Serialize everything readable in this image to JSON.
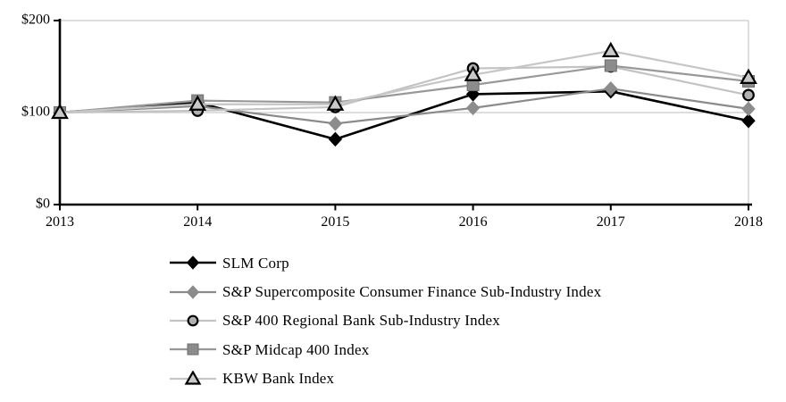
{
  "chart_data": {
    "type": "line",
    "title": "",
    "xlabel": "",
    "ylabel": "",
    "ylim": [
      0,
      200
    ],
    "grid": "horizontal",
    "legend_position": "bottom-left",
    "x_labels": [
      "2013",
      "2014",
      "2015",
      "2016",
      "2017",
      "2018"
    ],
    "y_ticks": [
      {
        "label": "$0",
        "value": 0
      },
      {
        "label": "$100",
        "value": 100
      },
      {
        "label": "$200",
        "value": 200
      }
    ],
    "series": [
      {
        "name": "SLM Corp",
        "marker": "diamond",
        "line_color": "#000000",
        "marker_fill": "#000000",
        "marker_stroke": "#000000",
        "values": [
          100,
          111,
          71,
          120,
          123,
          91
        ]
      },
      {
        "name": "S&P Supercomposite Consumer Finance Sub-Industry Index",
        "marker": "diamond",
        "line_color": "#8a8a8a",
        "marker_fill": "#8c8c8c",
        "marker_stroke": "#8c8c8c",
        "values": [
          100,
          107,
          88,
          105,
          126,
          104
        ]
      },
      {
        "name": "S&P 400 Regional Bank Sub-Industry Index",
        "marker": "circle",
        "line_color": "#c3c3c3",
        "marker_fill": "#b0b0b0",
        "marker_stroke": "#000000",
        "values": [
          100,
          102,
          106,
          148,
          150,
          119
        ]
      },
      {
        "name": "S&P Midcap 400 Index",
        "marker": "square",
        "line_color": "#989898",
        "marker_fill": "#8c8c8c",
        "marker_stroke": "#6e6e6e",
        "values": [
          100,
          113,
          111,
          130,
          151,
          134
        ]
      },
      {
        "name": "KBW Bank Index",
        "marker": "triangle",
        "line_color": "#c6c6c6",
        "marker_fill": "#c9c9c9",
        "marker_stroke": "#000000",
        "values": [
          100,
          109,
          109,
          141,
          167,
          138
        ]
      }
    ],
    "colors": {
      "axis": "#000000",
      "gridline": "#c9c9c9",
      "background": "#ffffff"
    }
  }
}
